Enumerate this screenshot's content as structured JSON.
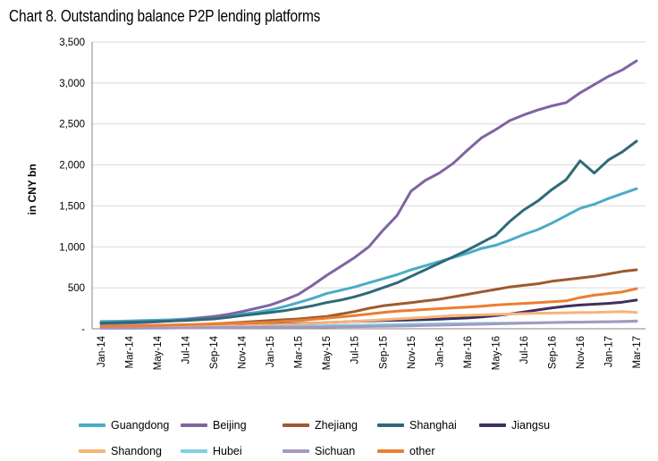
{
  "chart_data": {
    "type": "line",
    "title": "Chart 8. Outstanding balance P2P lending platforms",
    "ylabel": "in CNY bn",
    "xlabel": "",
    "ylim": [
      0,
      3500
    ],
    "yticks": [
      0,
      500,
      1000,
      1500,
      2000,
      2500,
      3000,
      3500
    ],
    "ytick_labels": [
      "-",
      "500",
      "1,000",
      "1,500",
      "2,000",
      "2,500",
      "3,000",
      "3,500"
    ],
    "grid": true,
    "legend": "bottom",
    "xtick_labels": [
      "Jan-14",
      "Mar-14",
      "May-14",
      "Jul-14",
      "Sep-14",
      "Nov-14",
      "Jan-15",
      "Mar-15",
      "May-15",
      "Jul-15",
      "Sep-15",
      "Nov-15",
      "Jan-16",
      "Mar-16",
      "May-16",
      "Jul-16",
      "Sep-16",
      "Nov-16",
      "Jan-17",
      "Mar-17"
    ],
    "x_months": [
      "Jan-14",
      "Feb-14",
      "Mar-14",
      "Apr-14",
      "May-14",
      "Jun-14",
      "Jul-14",
      "Aug-14",
      "Sep-14",
      "Oct-14",
      "Nov-14",
      "Dec-14",
      "Jan-15",
      "Feb-15",
      "Mar-15",
      "Apr-15",
      "May-15",
      "Jun-15",
      "Jul-15",
      "Aug-15",
      "Sep-15",
      "Oct-15",
      "Nov-15",
      "Dec-15",
      "Jan-16",
      "Feb-16",
      "Mar-16",
      "Apr-16",
      "May-16",
      "Jun-16",
      "Jul-16",
      "Aug-16",
      "Sep-16",
      "Oct-16",
      "Nov-16",
      "Dec-16",
      "Jan-17",
      "Feb-17",
      "Mar-17"
    ],
    "series": [
      {
        "name": "Guangdong",
        "color": "#4bacc6",
        "values": [
          90,
          92,
          95,
          100,
          105,
          110,
          120,
          135,
          150,
          165,
          180,
          200,
          230,
          270,
          320,
          370,
          430,
          470,
          510,
          560,
          610,
          660,
          720,
          770,
          820,
          870,
          920,
          980,
          1020,
          1080,
          1150,
          1210,
          1290,
          1380,
          1470,
          1520,
          1590,
          1650,
          1710
        ]
      },
      {
        "name": "Beijing",
        "color": "#8064a2",
        "values": [
          60,
          65,
          70,
          75,
          85,
          95,
          110,
          130,
          150,
          175,
          210,
          250,
          290,
          350,
          420,
          530,
          650,
          760,
          870,
          1000,
          1200,
          1380,
          1680,
          1810,
          1900,
          2020,
          2180,
          2330,
          2430,
          2540,
          2610,
          2670,
          2720,
          2760,
          2880,
          2980,
          3080,
          3160,
          3270
        ]
      },
      {
        "name": "Zhejiang",
        "color": "#9c5b2e",
        "values": [
          20,
          22,
          25,
          28,
          32,
          36,
          42,
          50,
          60,
          70,
          80,
          90,
          100,
          110,
          120,
          135,
          150,
          180,
          210,
          250,
          280,
          300,
          320,
          340,
          360,
          390,
          420,
          450,
          480,
          510,
          530,
          550,
          580,
          600,
          620,
          640,
          670,
          700,
          720
        ]
      },
      {
        "name": "Shanghai",
        "color": "#2f6a78",
        "values": [
          70,
          75,
          80,
          85,
          90,
          95,
          100,
          110,
          120,
          140,
          160,
          180,
          200,
          220,
          250,
          280,
          320,
          350,
          390,
          440,
          500,
          560,
          640,
          720,
          800,
          880,
          960,
          1050,
          1140,
          1310,
          1450,
          1560,
          1700,
          1820,
          2050,
          1900,
          2060,
          2160,
          2290
        ]
      },
      {
        "name": "Jiangsu",
        "color": "#3f2f5c",
        "values": [
          10,
          11,
          12,
          14,
          16,
          18,
          20,
          24,
          28,
          33,
          38,
          44,
          50,
          56,
          62,
          68,
          75,
          82,
          90,
          96,
          100,
          104,
          108,
          112,
          118,
          125,
          132,
          145,
          160,
          180,
          205,
          230,
          255,
          275,
          290,
          300,
          310,
          325,
          350
        ]
      },
      {
        "name": "Shandong",
        "color": "#f7b47a",
        "values": [
          10,
          12,
          14,
          16,
          18,
          21,
          24,
          27,
          30,
          33,
          36,
          40,
          45,
          50,
          58,
          66,
          74,
          82,
          90,
          100,
          110,
          120,
          130,
          140,
          150,
          160,
          165,
          170,
          175,
          180,
          185,
          190,
          192,
          195,
          198,
          200,
          205,
          210,
          200
        ]
      },
      {
        "name": "Hubei",
        "color": "#7fd0e3",
        "values": [
          5,
          6,
          7,
          8,
          9,
          10,
          12,
          14,
          16,
          18,
          20,
          22,
          25,
          28,
          31,
          34,
          37,
          40,
          43,
          46,
          49,
          52,
          55,
          58,
          60,
          62,
          64,
          66,
          68,
          70,
          72,
          74,
          76,
          78,
          80,
          82,
          84,
          86,
          90
        ]
      },
      {
        "name": "Sichuan",
        "color": "#a597c3",
        "values": [
          5,
          6,
          7,
          8,
          9,
          10,
          11,
          12,
          13,
          14,
          15,
          16,
          17,
          18,
          19,
          20,
          22,
          24,
          26,
          28,
          30,
          33,
          36,
          40,
          44,
          48,
          52,
          56,
          60,
          64,
          68,
          72,
          76,
          80,
          82,
          84,
          86,
          90,
          95
        ]
      },
      {
        "name": "other",
        "color": "#ed7d31",
        "values": [
          30,
          32,
          35,
          38,
          42,
          46,
          50,
          55,
          60,
          65,
          70,
          75,
          80,
          90,
          100,
          115,
          130,
          145,
          160,
          180,
          200,
          215,
          225,
          235,
          245,
          255,
          265,
          275,
          290,
          300,
          310,
          320,
          330,
          340,
          380,
          410,
          430,
          450,
          490
        ]
      }
    ]
  }
}
